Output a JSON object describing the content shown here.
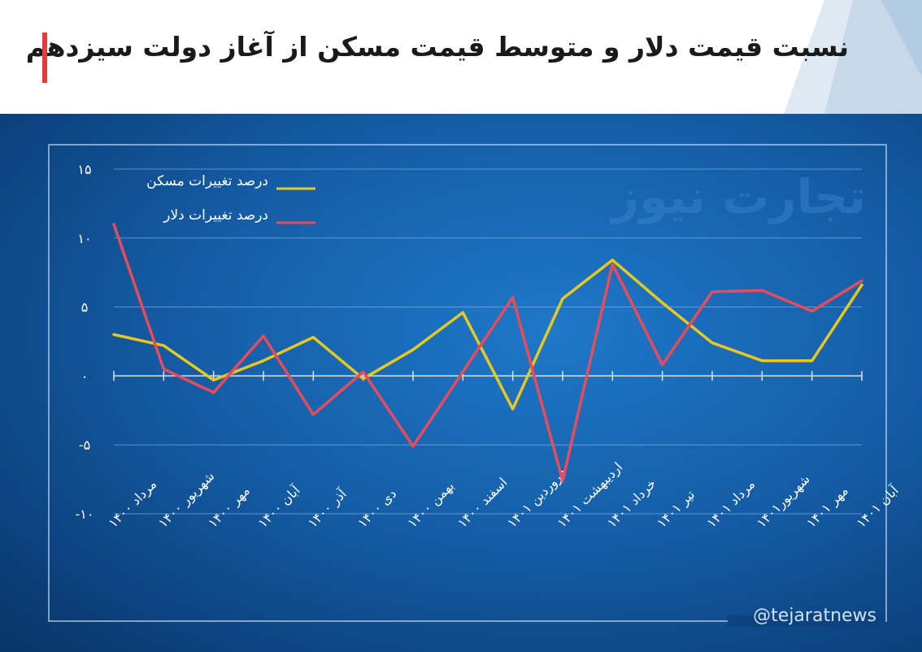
{
  "header": {
    "title": "نسبت قیمت دلار و متوسط قیمت مسکن از آغاز دولت سیزدهم"
  },
  "watermark": "تجارت نیوز",
  "handle": "@tejaratnews",
  "colors": {
    "housing": "#e8c81d",
    "dollar": "#e84c5a",
    "accent": "#e53a3f"
  },
  "chart_data": {
    "type": "line",
    "title": "نسبت قیمت دلار و متوسط قیمت مسکن از آغاز دولت سیزدهم",
    "categories": [
      "مرداد ۱۴۰۰",
      "شهریور ۱۴۰۰",
      "مهر ۱۴۰۰",
      "آبان ۱۴۰۰",
      "آذر ۱۴۰۰",
      "دی ۱۴۰۰",
      "بهمن ۱۴۰۰",
      "اسفند ۱۴۰۰",
      "فروردین ۱۴۰۱",
      "اردیبهشت ۱۴۰۱",
      "خرداد ۱۴۰۱",
      "تیر ۱۴۰۱",
      "مرداد ۱۴۰۱",
      "شهریور۱۴۰۱",
      "مهر ۱۴۰۱",
      "آبان ۱۴۰۱"
    ],
    "series": [
      {
        "name": "درصد تغییرات مسکن",
        "color": "#e8c81d",
        "values": [
          3.0,
          2.2,
          -0.3,
          1.1,
          2.8,
          -0.2,
          1.9,
          4.6,
          -2.4,
          5.6,
          8.4,
          5.3,
          2.4,
          1.1,
          1.1,
          6.6
        ]
      },
      {
        "name": "درصد تغییرات دلار",
        "color": "#e84c5a",
        "values": [
          11.0,
          0.5,
          -1.2,
          2.9,
          -2.8,
          0.3,
          -5.1,
          0.3,
          5.7,
          -7.6,
          8.1,
          0.8,
          6.1,
          6.2,
          4.7,
          6.9
        ]
      }
    ],
    "yticks": [
      "۱۵",
      "۱۰",
      "۵",
      "۰",
      "-۵",
      "-۱۰"
    ],
    "ytick_values": [
      15,
      10,
      5,
      0,
      -5,
      -10
    ],
    "ylim": [
      -10,
      15
    ],
    "grid": true,
    "legend": "top-left"
  }
}
